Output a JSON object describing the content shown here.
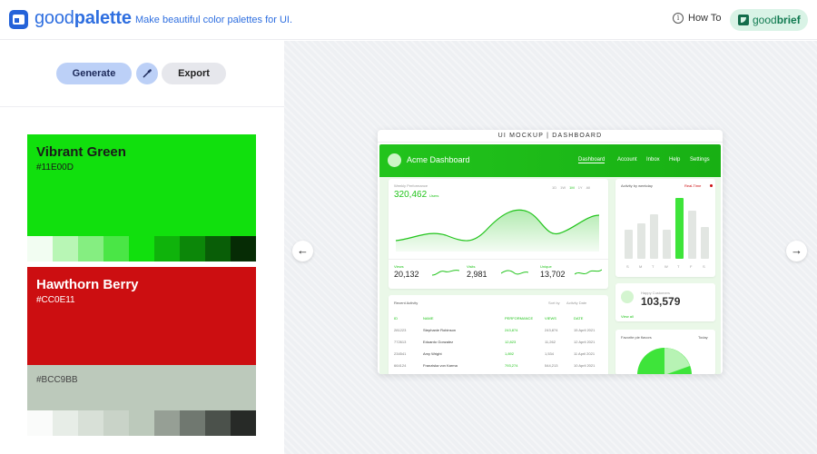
{
  "header": {
    "brand_light": "good",
    "brand_bold": "palette",
    "tagline": "Make beautiful color palettes for UI.",
    "howto_label": "How To",
    "partner_light": "good",
    "partner_bold": "brief"
  },
  "toolbar": {
    "generate_label": "Generate",
    "export_label": "Export",
    "picker_icon": "eyedropper-icon"
  },
  "palettes": [
    {
      "name": "Vibrant Green",
      "hex": "#11E00D",
      "base": "#11e00d",
      "text_color": "#1a1a1a",
      "shades": [
        "#f2fdf2",
        "#b8f6b5",
        "#85ee81",
        "#4ae646",
        "#11e00d",
        "#0fb30b",
        "#0c8709",
        "#095e07",
        "#062c05"
      ]
    },
    {
      "name": "Hawthorn Berry",
      "hex": "#CC0E11",
      "base": "#cc0e11",
      "text_color": "#ffffff",
      "shades": [
        "#fff3f3",
        "#fbb6b8",
        "#f37b7d",
        "#e74446",
        "#cc0e11",
        "#a40b0f",
        "#7c0a0c",
        "#56080a",
        "#2e0506"
      ]
    },
    {
      "name": "",
      "hex": "#BCC9BB",
      "base": "#bcc9bb",
      "text_color": "#444444",
      "shades": [
        "#fafbfa",
        "#e7ede7",
        "#d8e0d7",
        "#c9d3c8",
        "#bcc9bb",
        "#969f95",
        "#707870",
        "#4b514b",
        "#272a27"
      ]
    }
  ],
  "mockup": {
    "title": "UI MOCKUP | DASHBOARD",
    "brand": "Acme Dashboard",
    "nav": [
      "Dashboard",
      "Account",
      "Inbox",
      "Help",
      "Settings"
    ],
    "weekly_title": "Weekly Performance",
    "weekly_value": "320,462",
    "weekly_unit": "Users",
    "range_tabs": [
      "1D",
      "1W",
      "1M",
      "1Y",
      "All"
    ],
    "activity_title": "Activity by weekday",
    "realtime_label": "Real-Time",
    "weekdays": [
      "S",
      "M",
      "T",
      "W",
      "T",
      "F",
      "S"
    ],
    "weekday_values": [
      0.45,
      0.55,
      0.7,
      0.45,
      0.95,
      0.75,
      0.5
    ],
    "stats": [
      {
        "label": "Views",
        "value": "20,132"
      },
      {
        "label": "Visits",
        "value": "2,981"
      },
      {
        "label": "Unique",
        "value": "13,702"
      }
    ],
    "recent_title": "Recent Activity",
    "sort_label": "Sort by",
    "sort_value": "Activity Date",
    "table_headers": [
      "ID",
      "NAME",
      "PERFORMANCE",
      "VIEWS",
      "DATE"
    ],
    "table_rows": [
      [
        "281223",
        "Stephanie Robinson",
        "243,874",
        "243,874",
        "15 April 2021"
      ],
      [
        "772613",
        "Eduardo Gonzalez",
        "12,823",
        "11,262",
        "12 April 2021"
      ],
      [
        "234541",
        "Amy Wright",
        "1,892",
        "1,534",
        "11 April 2021"
      ],
      [
        "664124",
        "Franziska von Karma",
        "793,274",
        "544,213",
        "10 April 2021"
      ]
    ],
    "happy_title": "Happy Customers",
    "happy_value": "103,579",
    "happy_link": "View all",
    "flavors_title": "Favorite pie flavors",
    "flavors_period": "Today",
    "accent": "#22c41c"
  }
}
